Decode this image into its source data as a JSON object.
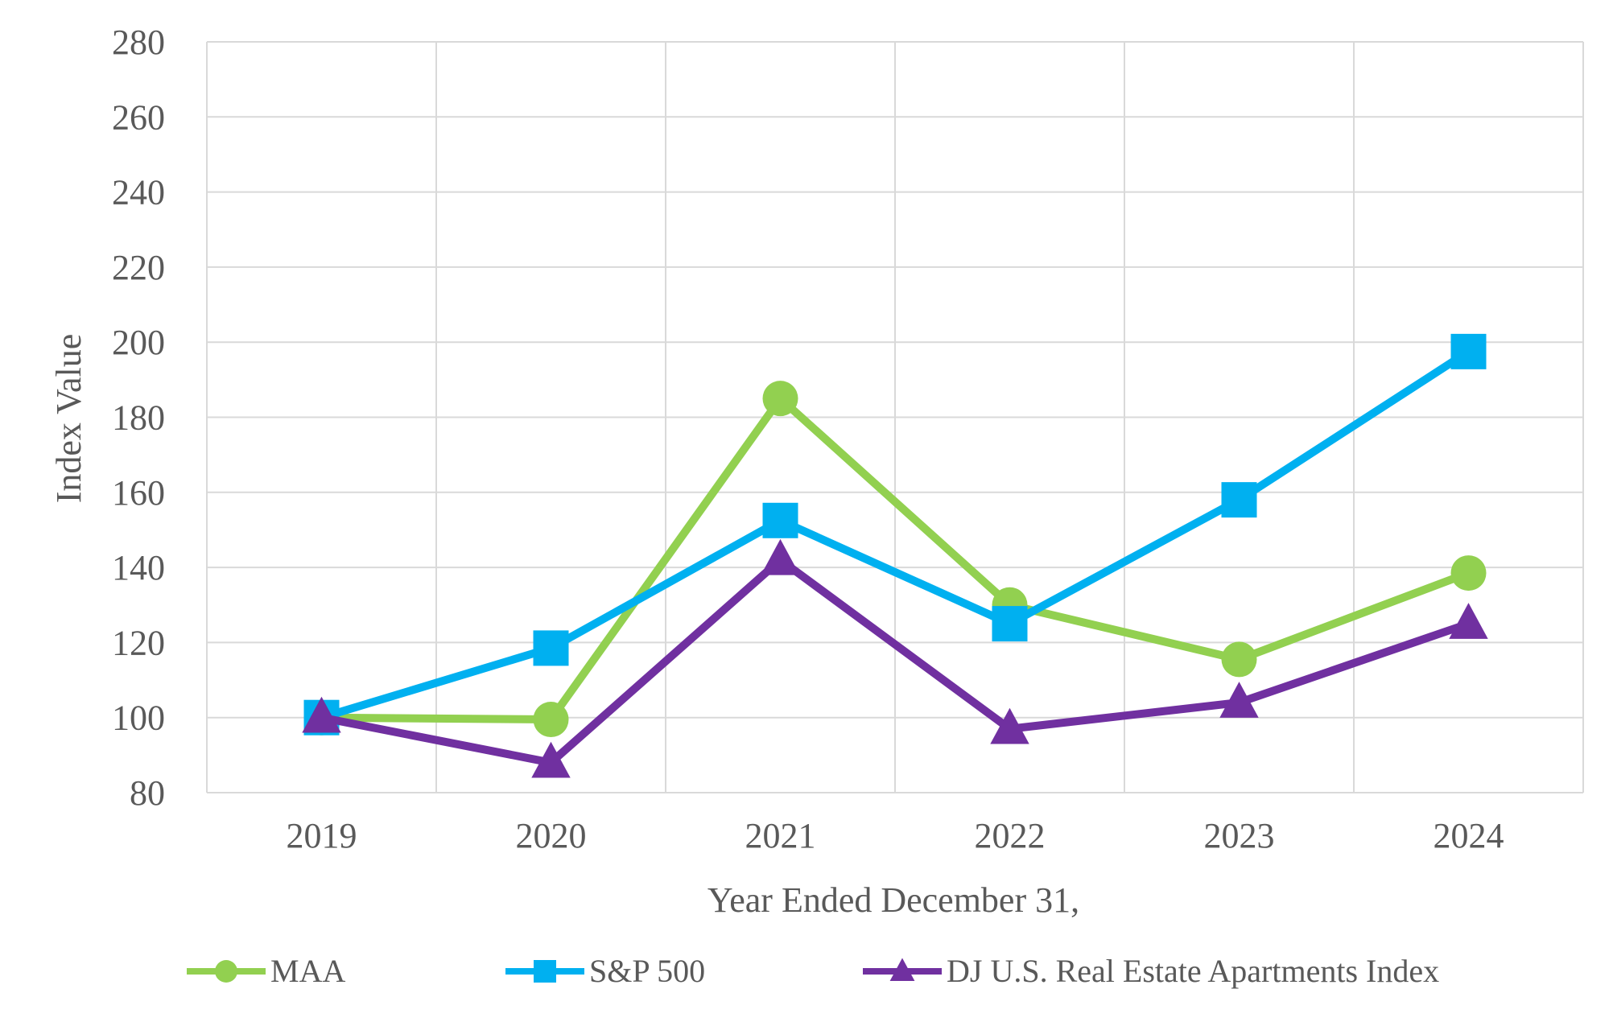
{
  "chart_data": {
    "type": "line",
    "title": "",
    "xlabel": "Year Ended December 31,",
    "ylabel": "Index Value",
    "categories": [
      "2019",
      "2020",
      "2021",
      "2022",
      "2023",
      "2024"
    ],
    "ylim": [
      80,
      280
    ],
    "yticks": [
      80,
      100,
      120,
      140,
      160,
      180,
      200,
      220,
      240,
      260,
      280
    ],
    "grid": true,
    "legend_position": "bottom",
    "series": [
      {
        "name": "MAA",
        "marker": "circle",
        "color": "#92D050",
        "values": [
          100,
          99.5,
          185,
          130,
          115.5,
          138.5
        ]
      },
      {
        "name": "S&P 500",
        "marker": "square",
        "color": "#00B0F0",
        "values": [
          100,
          118.5,
          152.5,
          125,
          158,
          197.5
        ]
      },
      {
        "name": "DJ U.S. Real Estate Apartments Index",
        "marker": "triangle",
        "color": "#7030A0",
        "values": [
          100,
          88,
          142,
          97,
          104,
          125
        ]
      }
    ]
  }
}
